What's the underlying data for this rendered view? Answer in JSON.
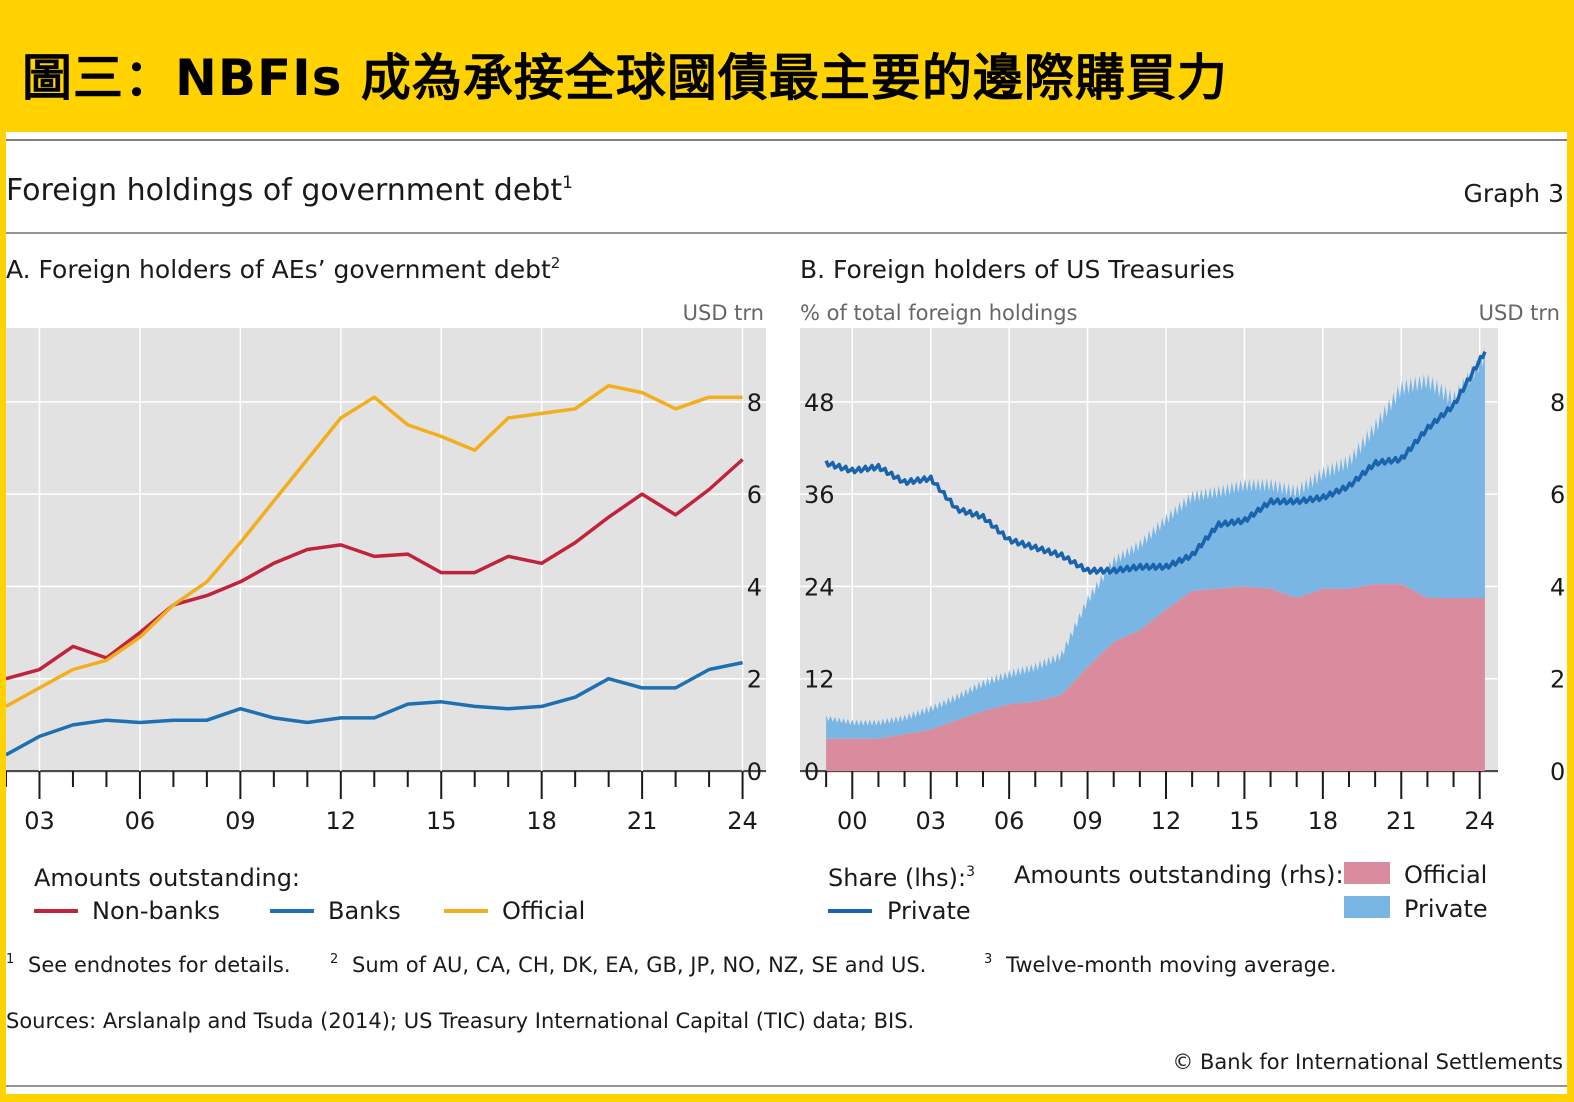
{
  "banner": {
    "title": "圖三：NBFIs 成為承接全球國債最主要的邊際購買力"
  },
  "header": {
    "title": "Foreign holdings of government debt",
    "title_sup": "1",
    "graph_label": "Graph 3"
  },
  "colors": {
    "background": "#ffd200",
    "plot_bg": "#e2e2e2",
    "nonbanks": "#c0243c",
    "banks": "#1f6fb3",
    "official_line": "#f2ae1c",
    "official_area": "#d98c9e",
    "private_area": "#79b6e3",
    "private_line": "#1a63ad"
  },
  "legend_a": {
    "heading": "Amounts outstanding:",
    "nonbanks": "Non-banks",
    "banks": "Banks",
    "official": "Official"
  },
  "legend_b": {
    "share_heading": "Share (lhs):",
    "share_sup": "3",
    "private_line": "Private",
    "amounts_heading": "Amounts outstanding (rhs):",
    "official": "Official",
    "private": "Private"
  },
  "footnotes": {
    "n1_sup": "1",
    "n1": "See endnotes for details.",
    "n2_sup": "2",
    "n2": "Sum of AU, CA, CH, DK, EA, GB, JP, NO, NZ, SE and US.",
    "n3_sup": "3",
    "n3": "Twelve-month moving average.",
    "sources": "Sources: Arslanalp and Tsuda (2014); US Treasury International Capital (TIC) data; BIS.",
    "copyright": "© Bank for International Settlements"
  },
  "chart_data": [
    {
      "id": "A",
      "type": "line",
      "title": "A. Foreign holders of AEs’ government debt",
      "title_sup": "2",
      "unit_right": "USD trn",
      "xlim": [
        2002,
        2024.7
      ],
      "ylim": [
        0,
        9.6
      ],
      "yticks": [
        0,
        2,
        4,
        6,
        8
      ],
      "xticks": [
        "03",
        "06",
        "09",
        "12",
        "15",
        "18",
        "21",
        "24"
      ],
      "xtick_years": [
        2003,
        2006,
        2009,
        2012,
        2015,
        2018,
        2021,
        2024
      ],
      "x": [
        2002,
        2003,
        2004,
        2005,
        2006,
        2007,
        2008,
        2009,
        2010,
        2011,
        2012,
        2013,
        2014,
        2015,
        2016,
        2017,
        2018,
        2019,
        2020,
        2021,
        2022,
        2023,
        2024
      ],
      "series": [
        {
          "name": "Non-banks",
          "color": "#c0243c",
          "values": [
            2.0,
            2.2,
            2.7,
            2.45,
            3.0,
            3.6,
            3.8,
            4.1,
            4.5,
            4.8,
            4.9,
            4.65,
            4.7,
            4.3,
            4.3,
            4.65,
            4.5,
            4.95,
            5.5,
            6.0,
            5.55,
            6.1,
            6.75
          ]
        },
        {
          "name": "Banks",
          "color": "#1f6fb3",
          "values": [
            0.35,
            0.75,
            1.0,
            1.1,
            1.05,
            1.1,
            1.1,
            1.35,
            1.15,
            1.05,
            1.15,
            1.15,
            1.45,
            1.5,
            1.4,
            1.35,
            1.4,
            1.6,
            2.0,
            1.8,
            1.8,
            2.2,
            2.35
          ]
        },
        {
          "name": "Official",
          "color": "#f2ae1c",
          "values": [
            1.4,
            1.8,
            2.2,
            2.4,
            2.9,
            3.6,
            4.1,
            4.95,
            5.85,
            6.75,
            7.65,
            8.1,
            7.5,
            7.25,
            6.95,
            7.65,
            7.75,
            7.85,
            8.35,
            8.2,
            7.85,
            8.1,
            8.1
          ]
        }
      ]
    },
    {
      "id": "B",
      "type": "area",
      "title": "B. Foreign holders of US Treasuries",
      "unit_left": "% of total foreign holdings",
      "unit_right": "USD trn",
      "xlim": [
        1998,
        2024.7
      ],
      "ylim_lhs": [
        0,
        57.6
      ],
      "yticks_lhs": [
        0,
        12,
        24,
        36,
        48
      ],
      "ylim_rhs": [
        0,
        9.6
      ],
      "yticks_rhs": [
        0,
        2,
        4,
        6,
        8
      ],
      "xticks": [
        "00",
        "03",
        "06",
        "09",
        "12",
        "15",
        "18",
        "21",
        "24"
      ],
      "xtick_years": [
        2000,
        2003,
        2006,
        2009,
        2012,
        2015,
        2018,
        2021,
        2024
      ],
      "x": [
        1999,
        2000,
        2001,
        2002,
        2003,
        2004,
        2005,
        2006,
        2007,
        2008,
        2009,
        2010,
        2011,
        2012,
        2013,
        2014,
        2015,
        2016,
        2017,
        2018,
        2019,
        2020,
        2021,
        2022,
        2023,
        2024.2
      ],
      "series": [
        {
          "name": "Official",
          "axis": "rhs",
          "stack": true,
          "color": "#d98c9e",
          "values": [
            0.7,
            0.7,
            0.7,
            0.8,
            0.9,
            1.1,
            1.3,
            1.45,
            1.5,
            1.65,
            2.25,
            2.8,
            3.05,
            3.5,
            3.9,
            3.95,
            4.0,
            3.95,
            3.75,
            3.95,
            3.95,
            4.05,
            4.05,
            3.75,
            3.75,
            3.75
          ]
        },
        {
          "name": "Private",
          "axis": "rhs",
          "stack": true,
          "color": "#79b6e3",
          "values": [
            0.45,
            0.35,
            0.35,
            0.35,
            0.45,
            0.5,
            0.6,
            0.65,
            0.75,
            0.85,
            1.45,
            1.75,
            1.85,
            1.95,
            2.05,
            2.1,
            2.2,
            2.25,
            2.3,
            2.5,
            2.75,
            3.4,
            4.25,
            4.7,
            4.3,
            5.25
          ]
        },
        {
          "name": "Private share",
          "axis": "lhs",
          "color": "#1a63ad",
          "values": [
            40.0,
            39.0,
            39.5,
            37.5,
            38.0,
            34.0,
            33.0,
            30.0,
            29.0,
            28.0,
            26.0,
            26.0,
            26.5,
            26.5,
            28.0,
            32.0,
            32.5,
            35.0,
            35.0,
            35.5,
            37.0,
            40.0,
            40.5,
            44.5,
            47.5,
            54.5
          ]
        }
      ]
    }
  ]
}
